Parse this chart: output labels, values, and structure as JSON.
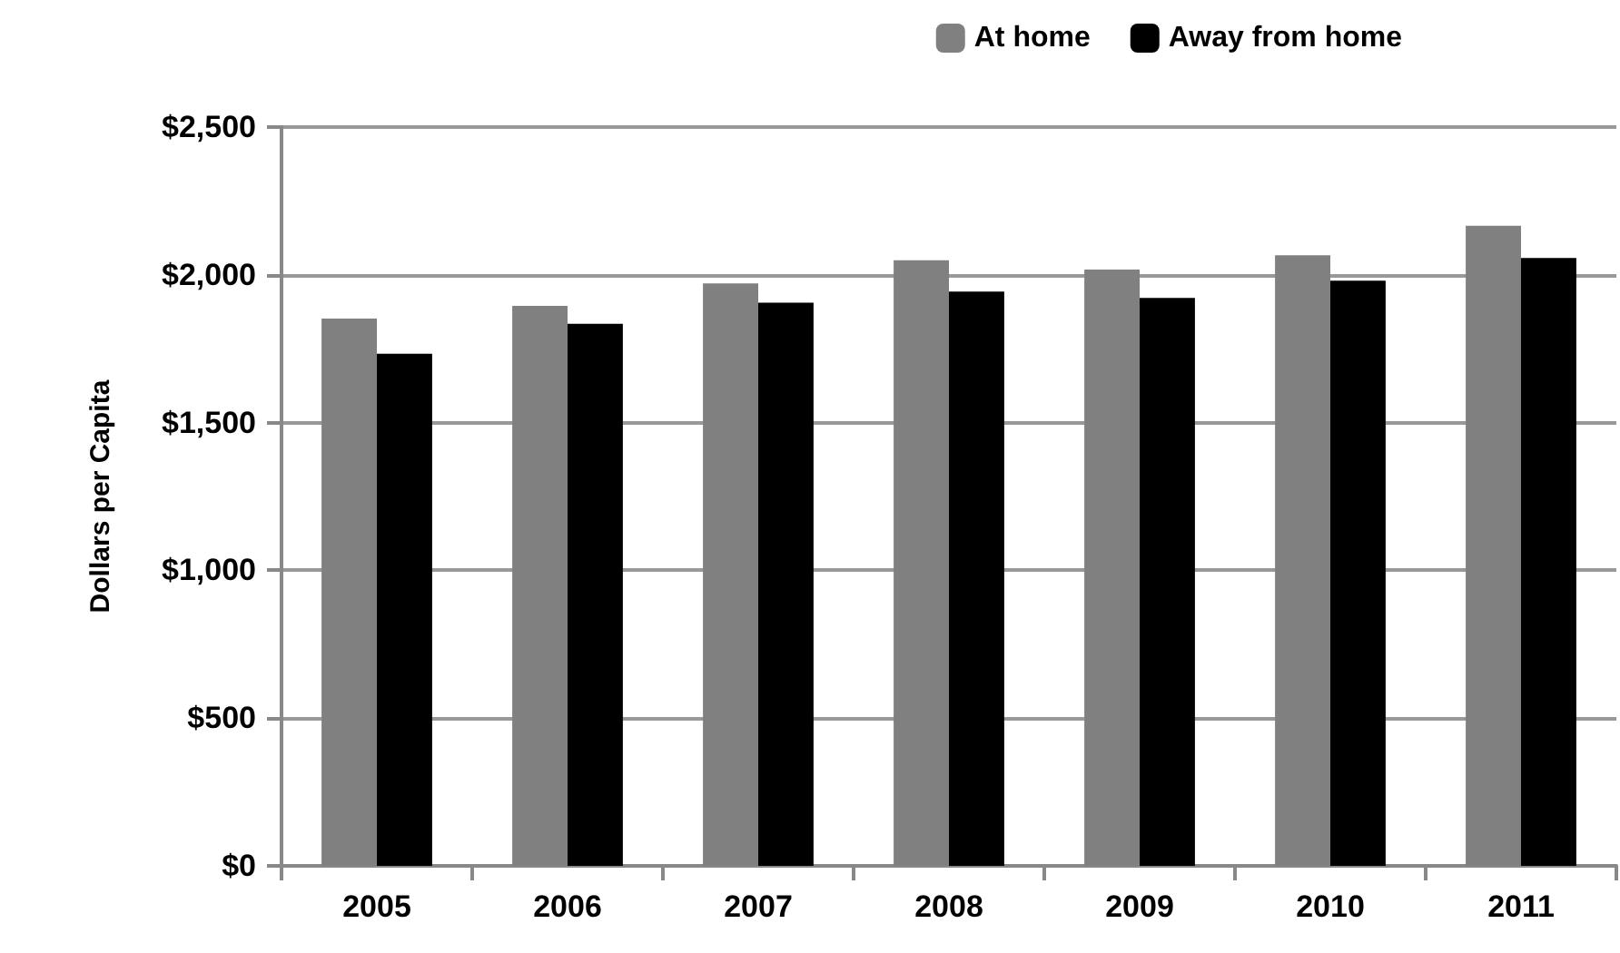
{
  "chart_data": {
    "type": "bar",
    "ylabel": "Dollars per Capita",
    "categories": [
      "2005",
      "2006",
      "2007",
      "2008",
      "2009",
      "2010",
      "2011"
    ],
    "series": [
      {
        "name": "At home",
        "color": "#808080",
        "values": [
          1852,
          1895,
          1971,
          2049,
          2018,
          2066,
          2166
        ]
      },
      {
        "name": "Away from home",
        "color": "#000000",
        "values": [
          1733,
          1834,
          1906,
          1943,
          1922,
          1980,
          2057
        ]
      }
    ],
    "ylim": [
      0,
      2500
    ],
    "yticks": [
      {
        "value": 0,
        "label": "$0"
      },
      {
        "value": 500,
        "label": "$500"
      },
      {
        "value": 1000,
        "label": "$1,000"
      },
      {
        "value": 1500,
        "label": "$1,500"
      },
      {
        "value": 2000,
        "label": "$2,000"
      },
      {
        "value": 2500,
        "label": "$2,500"
      }
    ],
    "grid": "y",
    "legend": "top right"
  }
}
